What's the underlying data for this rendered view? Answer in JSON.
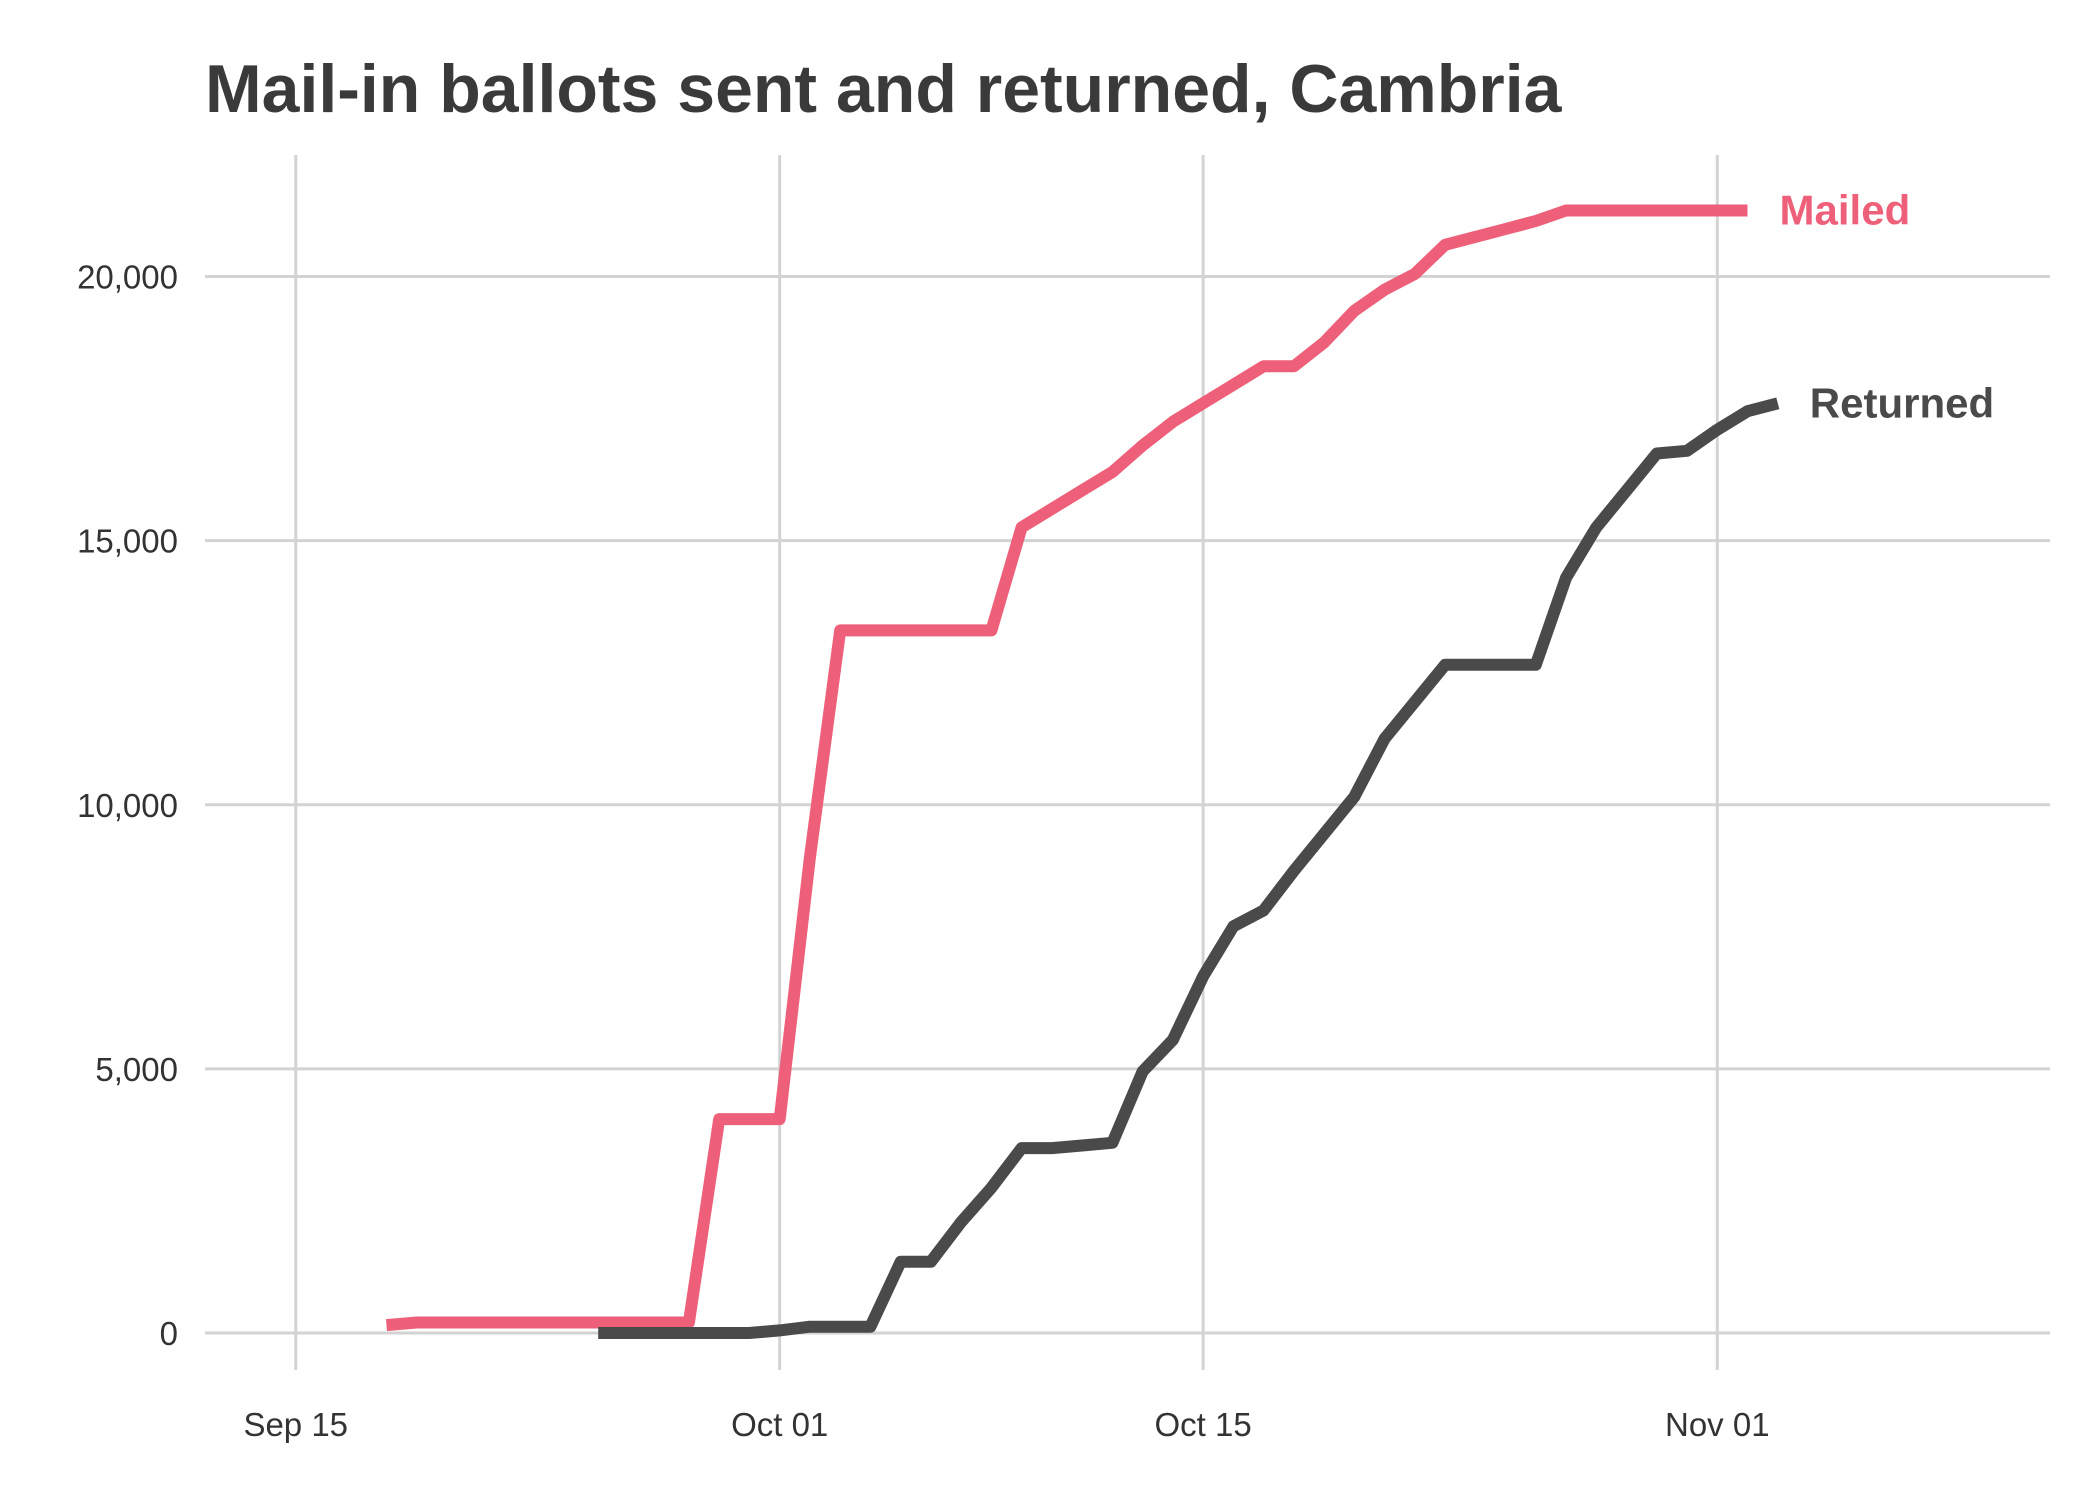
{
  "chart_data": {
    "type": "line",
    "title": "Mail-in ballots sent and returned, Cambria",
    "xlabel": "",
    "ylabel": "",
    "x_ticks": [
      {
        "date": "2020-09-15",
        "label": "Sep 15"
      },
      {
        "date": "2020-10-01",
        "label": "Oct 01"
      },
      {
        "date": "2020-10-15",
        "label": "Oct 15"
      },
      {
        "date": "2020-11-01",
        "label": "Nov 01"
      }
    ],
    "y_ticks": [
      {
        "value": 0,
        "label": "0"
      },
      {
        "value": 5000,
        "label": "5,000"
      },
      {
        "value": 10000,
        "label": "10,000"
      },
      {
        "value": 15000,
        "label": "15,000"
      },
      {
        "value": 20000,
        "label": "20,000"
      }
    ],
    "xlim": [
      "2020-09-12",
      "2020-11-12"
    ],
    "ylim": [
      -700,
      22300
    ],
    "grid": true,
    "legend": "direct labels at line ends",
    "series": [
      {
        "name": "Mailed",
        "color": "#ee5f79",
        "points": [
          [
            "2020-09-18",
            150
          ],
          [
            "2020-09-19",
            200
          ],
          [
            "2020-09-20",
            200
          ],
          [
            "2020-09-21",
            200
          ],
          [
            "2020-09-22",
            200
          ],
          [
            "2020-09-23",
            200
          ],
          [
            "2020-09-24",
            200
          ],
          [
            "2020-09-25",
            200
          ],
          [
            "2020-09-26",
            200
          ],
          [
            "2020-09-27",
            200
          ],
          [
            "2020-09-28",
            200
          ],
          [
            "2020-09-29",
            4050
          ],
          [
            "2020-09-30",
            4050
          ],
          [
            "2020-10-01",
            4050
          ],
          [
            "2020-10-02",
            9000
          ],
          [
            "2020-10-03",
            13300
          ],
          [
            "2020-10-04",
            13300
          ],
          [
            "2020-10-05",
            13300
          ],
          [
            "2020-10-06",
            13300
          ],
          [
            "2020-10-07",
            13300
          ],
          [
            "2020-10-08",
            13300
          ],
          [
            "2020-10-09",
            15250
          ],
          [
            "2020-10-10",
            15600
          ],
          [
            "2020-10-11",
            15950
          ],
          [
            "2020-10-12",
            16300
          ],
          [
            "2020-10-13",
            16800
          ],
          [
            "2020-10-14",
            17250
          ],
          [
            "2020-10-15",
            17600
          ],
          [
            "2020-10-16",
            17950
          ],
          [
            "2020-10-17",
            18300
          ],
          [
            "2020-10-18",
            18300
          ],
          [
            "2020-10-19",
            18750
          ],
          [
            "2020-10-20",
            19350
          ],
          [
            "2020-10-21",
            19750
          ],
          [
            "2020-10-22",
            20050
          ],
          [
            "2020-10-23",
            20600
          ],
          [
            "2020-10-24",
            20750
          ],
          [
            "2020-10-25",
            20900
          ],
          [
            "2020-10-26",
            21050
          ],
          [
            "2020-10-27",
            21250
          ],
          [
            "2020-10-28",
            21250
          ],
          [
            "2020-10-29",
            21250
          ],
          [
            "2020-10-30",
            21250
          ],
          [
            "2020-10-31",
            21250
          ],
          [
            "2020-11-01",
            21250
          ],
          [
            "2020-11-02",
            21250
          ]
        ]
      },
      {
        "name": "Returned",
        "color": "#4a4a4a",
        "points": [
          [
            "2020-09-25",
            0
          ],
          [
            "2020-09-26",
            0
          ],
          [
            "2020-09-27",
            0
          ],
          [
            "2020-09-28",
            0
          ],
          [
            "2020-09-29",
            0
          ],
          [
            "2020-09-30",
            0
          ],
          [
            "2020-10-01",
            50
          ],
          [
            "2020-10-02",
            120
          ],
          [
            "2020-10-03",
            120
          ],
          [
            "2020-10-04",
            120
          ],
          [
            "2020-10-05",
            1350
          ],
          [
            "2020-10-06",
            1350
          ],
          [
            "2020-10-07",
            2100
          ],
          [
            "2020-10-08",
            2750
          ],
          [
            "2020-10-09",
            3500
          ],
          [
            "2020-10-10",
            3500
          ],
          [
            "2020-10-11",
            3550
          ],
          [
            "2020-10-12",
            3600
          ],
          [
            "2020-10-13",
            4950
          ],
          [
            "2020-10-14",
            5550
          ],
          [
            "2020-10-15",
            6750
          ],
          [
            "2020-10-16",
            7700
          ],
          [
            "2020-10-17",
            8000
          ],
          [
            "2020-10-18",
            8750
          ],
          [
            "2020-10-19",
            9450
          ],
          [
            "2020-10-20",
            10150
          ],
          [
            "2020-10-21",
            11250
          ],
          [
            "2020-10-22",
            11950
          ],
          [
            "2020-10-23",
            12650
          ],
          [
            "2020-10-24",
            12650
          ],
          [
            "2020-10-25",
            12650
          ],
          [
            "2020-10-26",
            12650
          ],
          [
            "2020-10-27",
            14300
          ],
          [
            "2020-10-28",
            15250
          ],
          [
            "2020-10-29",
            15950
          ],
          [
            "2020-10-30",
            16650
          ],
          [
            "2020-10-31",
            16700
          ],
          [
            "2020-11-01",
            17100
          ],
          [
            "2020-11-02",
            17450
          ],
          [
            "2020-11-03",
            17600
          ]
        ]
      }
    ]
  }
}
